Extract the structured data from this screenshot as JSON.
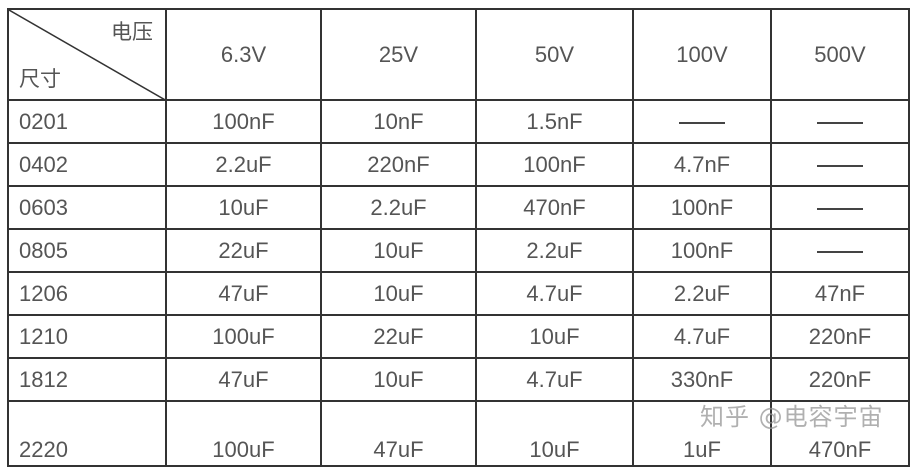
{
  "table": {
    "corner_voltage_label": "电压",
    "corner_size_label": "尺寸",
    "columns": [
      "6.3V",
      "25V",
      "50V",
      "100V",
      "500V"
    ],
    "rows": [
      {
        "size": "0201",
        "values": [
          "100nF",
          "10nF",
          "1.5nF",
          "—",
          "—"
        ]
      },
      {
        "size": "0402",
        "values": [
          "2.2uF",
          "220nF",
          "100nF",
          "4.7nF",
          "—"
        ]
      },
      {
        "size": "0603",
        "values": [
          "10uF",
          "2.2uF",
          "470nF",
          "100nF",
          "—"
        ]
      },
      {
        "size": "0805",
        "values": [
          "22uF",
          "10uF",
          "2.2uF",
          "100nF",
          "—"
        ]
      },
      {
        "size": "1206",
        "values": [
          "47uF",
          "10uF",
          "4.7uF",
          "2.2uF",
          "47nF"
        ]
      },
      {
        "size": "1210",
        "values": [
          "100uF",
          "22uF",
          "10uF",
          "4.7uF",
          "220nF"
        ]
      },
      {
        "size": "1812",
        "values": [
          "47uF",
          "10uF",
          "4.7uF",
          "330nF",
          "220nF"
        ]
      },
      {
        "size": "2220",
        "values": [
          "100uF",
          "47uF",
          "10uF",
          "1uF",
          "470nF"
        ]
      }
    ]
  },
  "watermark": "知乎 @电容宇宙"
}
